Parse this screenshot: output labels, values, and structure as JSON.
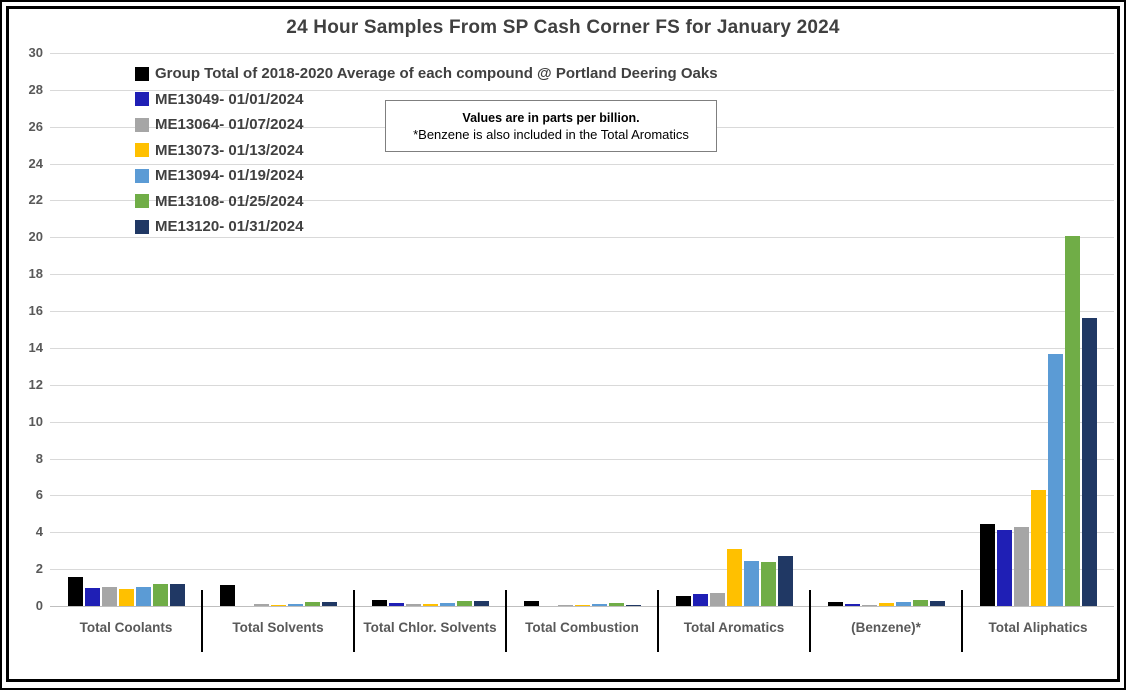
{
  "chart_data": {
    "type": "bar",
    "title": "24 Hour Samples From SP Cash Corner FS for January 2024",
    "categories": [
      "Total Coolants",
      "Total Solvents",
      "Total Chlor. Solvents",
      "Total Combustion",
      "Total Aromatics",
      "(Benzene)*",
      "Total Aliphatics"
    ],
    "series": [
      {
        "name": "Group Total of 2018-2020 Average of each compound @ Portland Deering Oaks",
        "color": "#000000",
        "values": [
          1.55,
          1.15,
          0.35,
          0.25,
          0.55,
          0.2,
          4.45
        ]
      },
      {
        "name": "ME13049- 01/01/2024",
        "color": "#1f1fb5",
        "values": [
          1.0,
          0.0,
          0.15,
          0.0,
          0.65,
          0.1,
          4.1
        ]
      },
      {
        "name": "ME13064- 01/07/2024",
        "color": "#a6a6a6",
        "values": [
          1.05,
          0.12,
          0.12,
          0.03,
          0.68,
          0.08,
          4.3
        ]
      },
      {
        "name": "ME13073- 01/13/2024",
        "color": "#ffc000",
        "values": [
          0.9,
          0.07,
          0.13,
          0.03,
          3.1,
          0.15,
          6.3
        ]
      },
      {
        "name": "ME13094- 01/19/2024",
        "color": "#5b9bd5",
        "values": [
          1.05,
          0.12,
          0.15,
          0.1,
          2.45,
          0.2,
          13.65
        ]
      },
      {
        "name": "ME13108- 01/25/2024",
        "color": "#70ad47",
        "values": [
          1.2,
          0.2,
          0.25,
          0.15,
          2.4,
          0.3,
          20.1
        ]
      },
      {
        "name": "ME13120- 01/31/2024",
        "color": "#203864",
        "values": [
          1.2,
          0.2,
          0.25,
          0.08,
          2.7,
          0.25,
          15.65
        ]
      }
    ],
    "ylim": [
      0,
      30
    ],
    "ytick_step": 2,
    "grid": true,
    "legend_position": "top-left",
    "annotation": {
      "line1": "Values are in parts per billion.",
      "line2": "*Benzene is also included in the Total Aromatics"
    }
  }
}
